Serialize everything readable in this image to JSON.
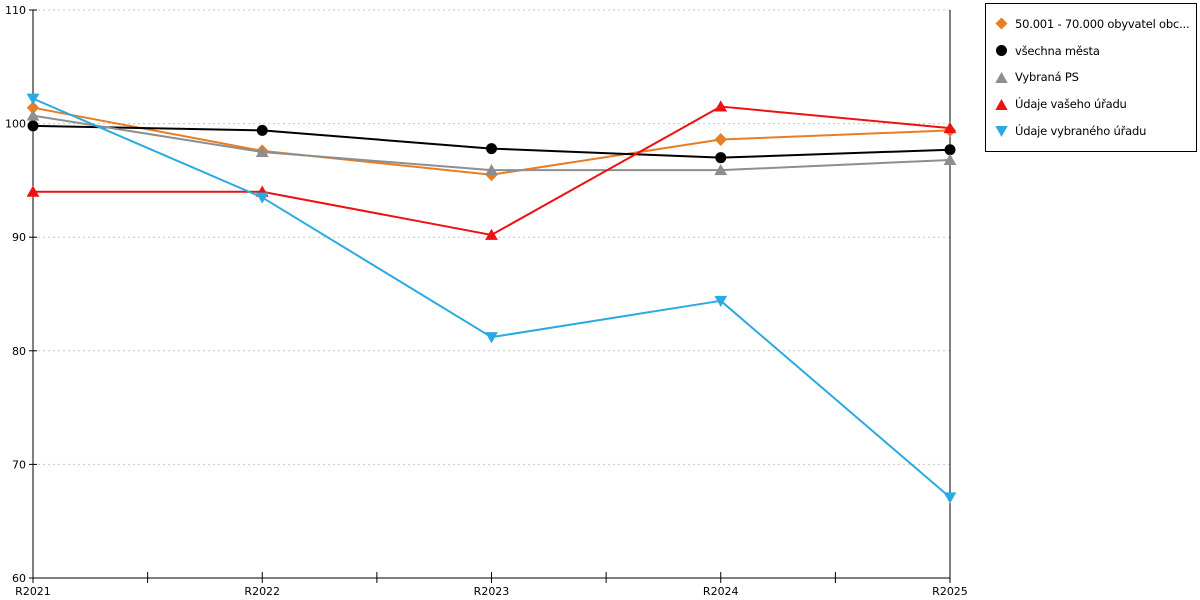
{
  "chart_data": {
    "type": "line",
    "title": "",
    "xlabel": "",
    "ylabel": "",
    "categories": [
      "R2021",
      "R2022",
      "R2023",
      "R2024",
      "R2025"
    ],
    "series": [
      {
        "name": "50.001 - 70.000 obyvatel obc...",
        "color": "#e87d22",
        "marker": "diamond",
        "values": [
          101.4,
          97.6,
          95.5,
          98.6,
          99.4
        ]
      },
      {
        "name": "všechna města",
        "color": "#000000",
        "marker": "circle",
        "values": [
          99.8,
          99.4,
          97.8,
          97.0,
          97.7
        ]
      },
      {
        "name": "Vybraná PS",
        "color": "#8e8e8e",
        "marker": "triangle-up",
        "values": [
          100.7,
          97.5,
          95.9,
          95.9,
          96.8
        ]
      },
      {
        "name": "Údaje vašeho úřadu",
        "color": "#ee1111",
        "marker": "triangle-up",
        "values": [
          94.0,
          94.0,
          90.2,
          101.5,
          99.6
        ]
      },
      {
        "name": "Údaje vybraného úřadu",
        "color": "#29abe2",
        "marker": "triangle-down",
        "values": [
          102.2,
          93.5,
          81.2,
          84.4,
          67.1
        ]
      }
    ],
    "ylim": [
      60,
      110
    ],
    "yticks": [
      60,
      70,
      80,
      90,
      100,
      110
    ],
    "grid": "horizontal-dotted",
    "gridline_color": "#c4c4c4",
    "axis_color": "#000000",
    "legend_position": "top-right"
  }
}
